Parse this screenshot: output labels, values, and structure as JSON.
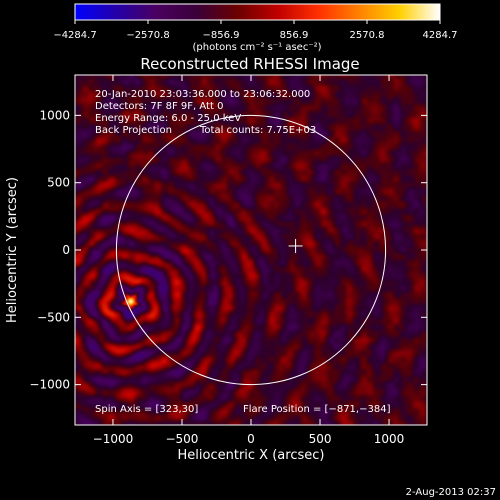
{
  "chart_data": {
    "type": "heatmap",
    "title": "Reconstructed RHESSI Image",
    "xlabel": "Heliocentric X (arcsec)",
    "ylabel": "Heliocentric Y (arcsec)",
    "xlim": [
      -1275,
      1275
    ],
    "ylim": [
      -1300,
      1300
    ],
    "x_ticks": [
      -1000,
      -500,
      0,
      500,
      1000
    ],
    "y_ticks": [
      -1000,
      -500,
      0,
      500,
      1000
    ],
    "x_tick_labels": [
      "−1000",
      "−500",
      "0",
      "500",
      "1000"
    ],
    "y_tick_labels": [
      "−1000",
      "−500",
      "0",
      "500",
      "1000"
    ],
    "colorbar": {
      "min": -4284.7,
      "max": 4284.7,
      "tick_values": [
        -4284.7,
        -2570.8,
        -856.9,
        856.9,
        2570.8,
        4284.7
      ],
      "tick_labels": [
        "−4284.7",
        "−2570.8",
        "−856.9",
        "856.9",
        "2570.8",
        "4284.7"
      ],
      "units": "(photons cm⁻² s⁻¹ asec⁻²)",
      "palette": [
        "#0000ff",
        "#2400aa",
        "#4a0060",
        "#3a0038",
        "#6a0000",
        "#c00000",
        "#ff3000",
        "#ff8000",
        "#ffd000",
        "#ffffff"
      ]
    },
    "annotations": {
      "time_range": "20-Jan-2010 23:03:36.000 to 23:06:32.000",
      "detectors": "Detectors: 7F 8F 9F, Att 0",
      "energy_range": "Energy Range: 6.0 - 25.0 keV",
      "method": "Back Projection",
      "total_counts": "Total counts: 7.75E+03",
      "spin_axis": "Spin Axis = [323,30]",
      "flare_position": "Flare Position = [−871,−384]",
      "footer_date": "2-Aug-2013 02:37"
    },
    "solar_limb": {
      "center": [
        0,
        0
      ],
      "radius": 975
    },
    "spin_axis_marker": [
      323,
      30
    ],
    "flare_source": {
      "x": -871,
      "y": -384,
      "peak": 4284.7
    }
  }
}
